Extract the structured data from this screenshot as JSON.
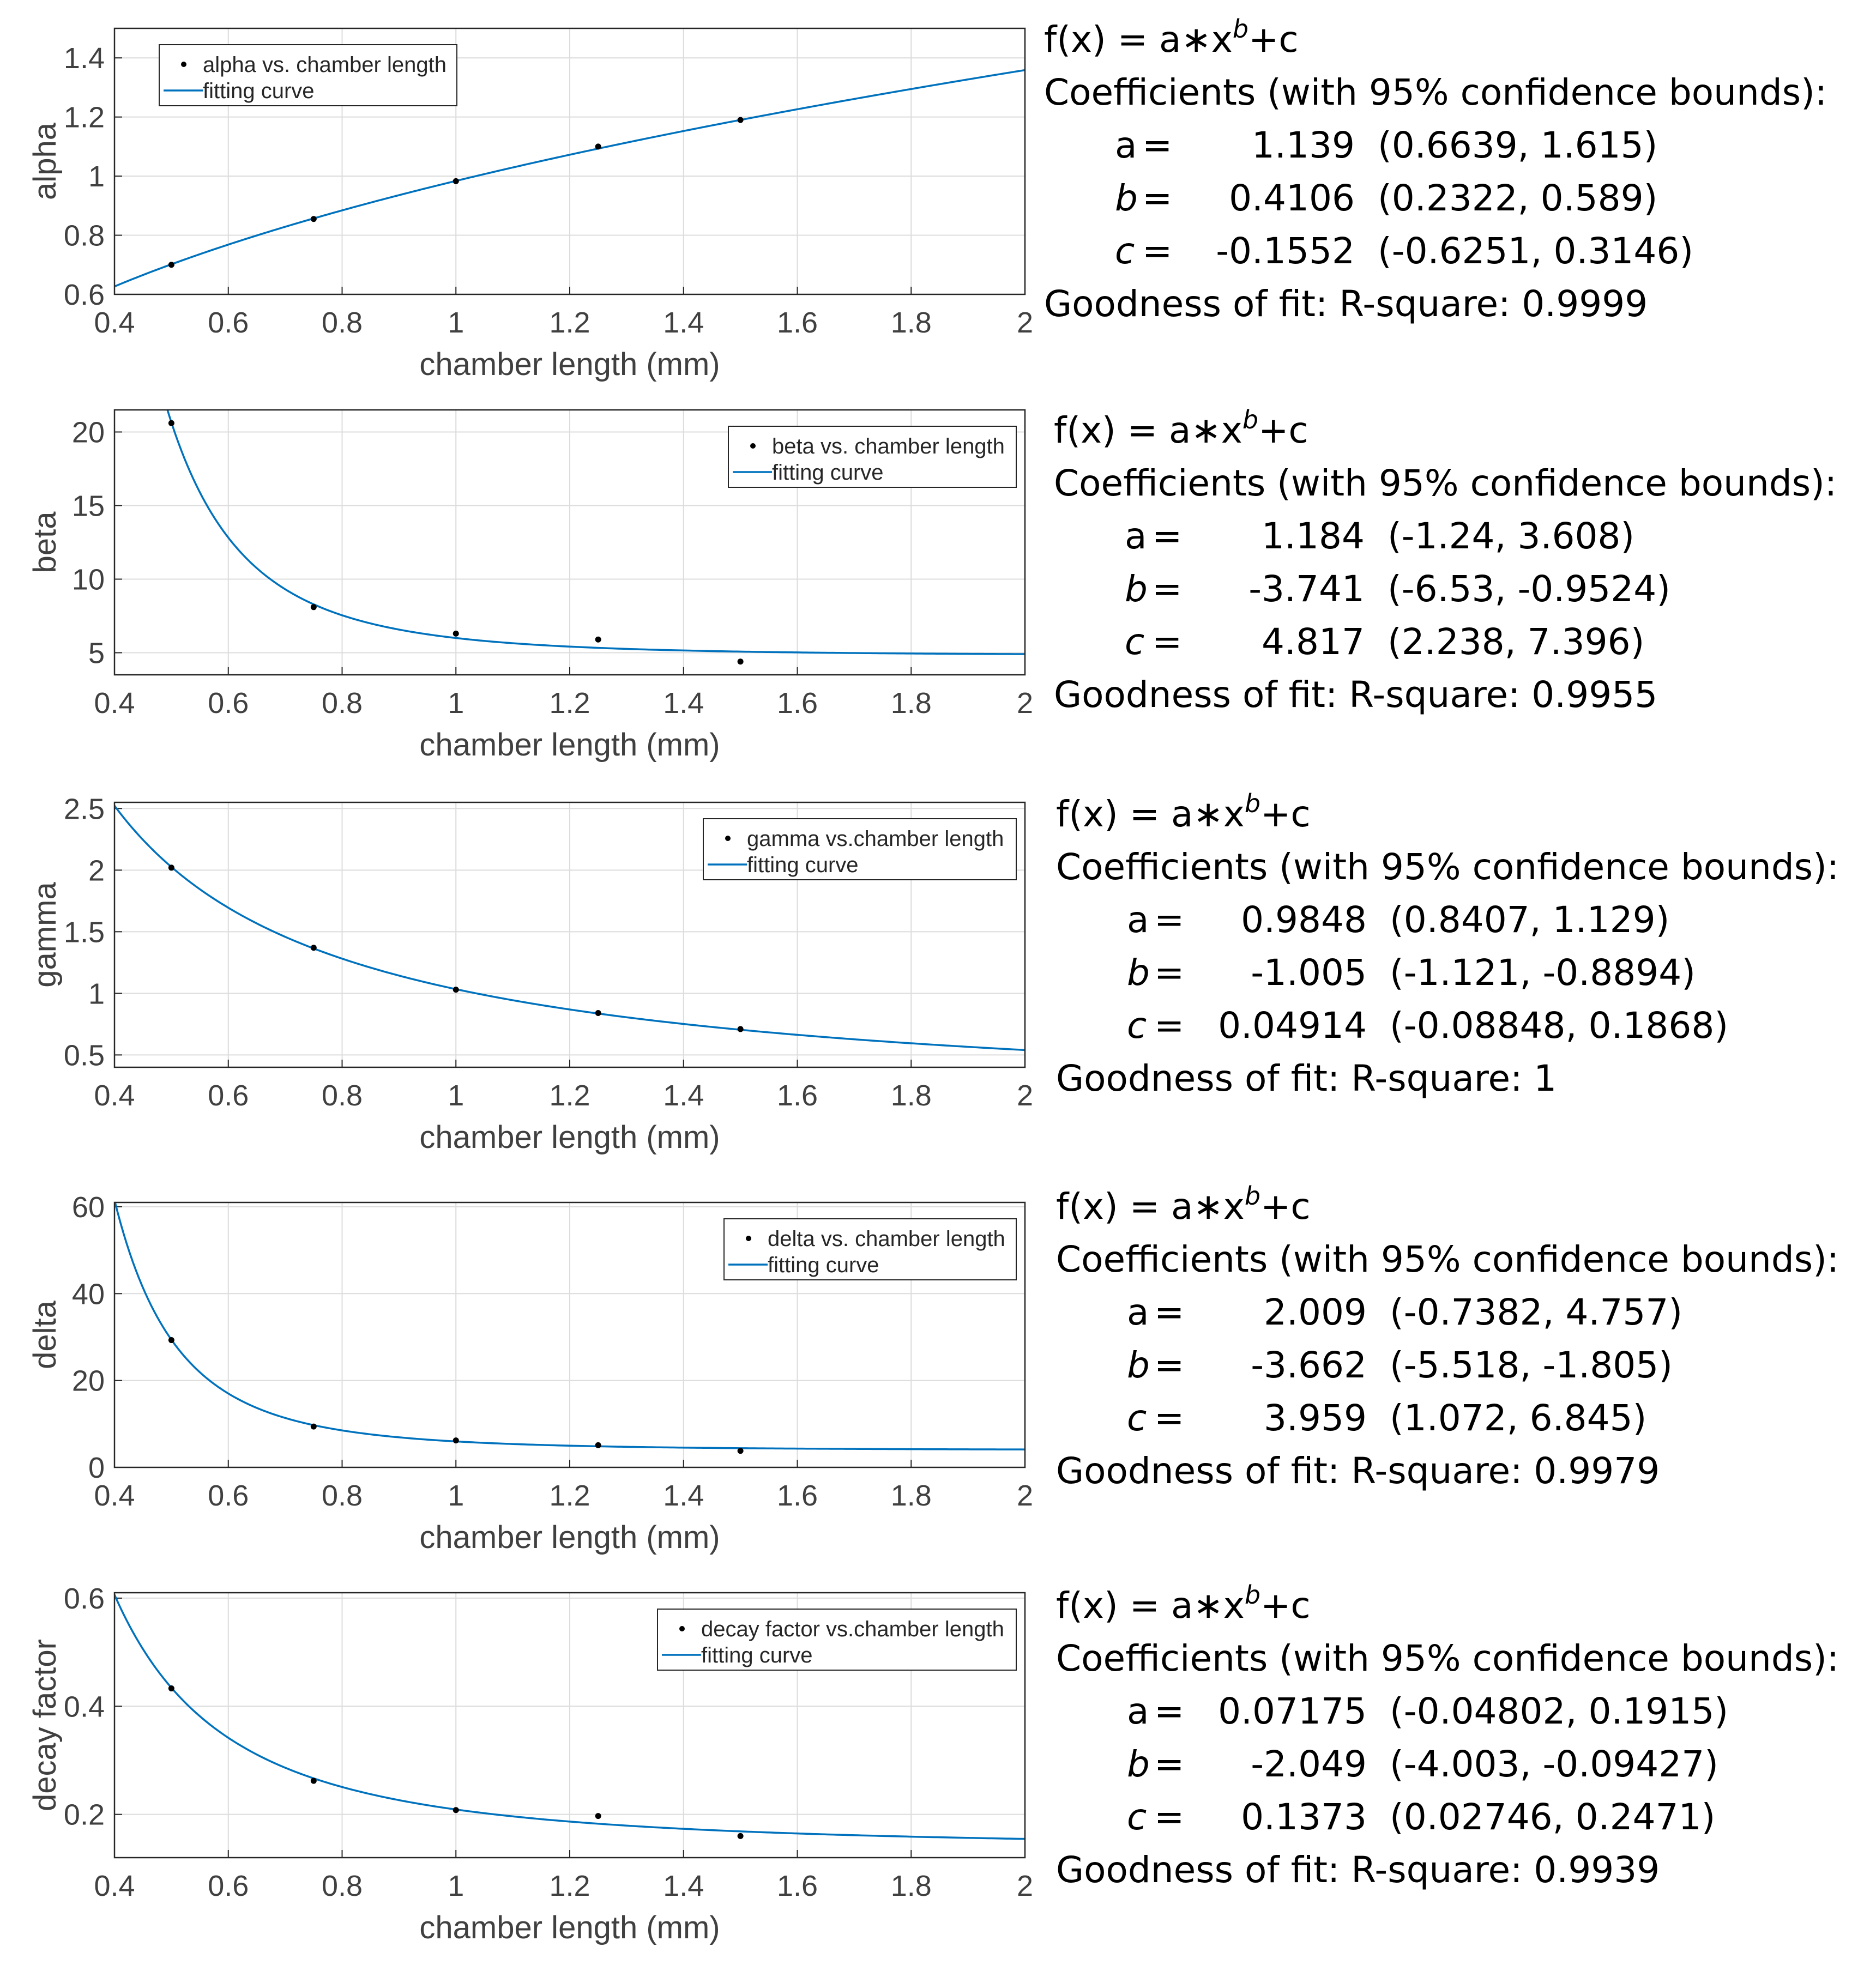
{
  "chart_data": [
    {
      "type": "scatter",
      "xlabel": "chamber length (mm)",
      "ylabel": "alpha",
      "xlim": [
        0.4,
        2
      ],
      "ylim": [
        0.6,
        1.5
      ],
      "xticks": [
        "0.4",
        "0.6",
        "0.8",
        "1",
        "1.2",
        "1.4",
        "1.6",
        "1.8",
        "2"
      ],
      "yticks": [
        "0.6",
        "0.8",
        "1",
        "1.2",
        "1.4"
      ],
      "grid": true,
      "legend_position": "top-left",
      "series": [
        {
          "name": "alpha vs. chamber length",
          "kind": "points",
          "x": [
            0.5,
            0.75,
            1,
            1.25,
            1.5
          ],
          "y": [
            0.7,
            0.855,
            0.983,
            1.1,
            1.19
          ]
        },
        {
          "name": "fitting curve",
          "kind": "fit",
          "a": 1.139,
          "b": 0.4106,
          "c": -0.1552
        }
      ],
      "fit": {
        "equation_prefix": "f(x) = a∗x",
        "equation_exp": "b",
        "equation_suffix": "+c",
        "coefficients_heading": "Coefficients (with 95% confidence bounds):",
        "coefficients": [
          {
            "name": "a",
            "eq": "=",
            "value": "1.139",
            "bounds": "(0.6639, 1.615)"
          },
          {
            "name": "b",
            "eq": "=",
            "value": "0.4106",
            "bounds": "(0.2322, 0.589)"
          },
          {
            "name": "c",
            "eq": "=",
            "value": "-0.1552",
            "bounds": "(-0.6251, 0.3146)"
          }
        ],
        "goodness": "Goodness of fit: R-square: 0.9999"
      }
    },
    {
      "type": "scatter",
      "xlabel": "chamber length (mm)",
      "ylabel": "beta",
      "xlim": [
        0.4,
        2
      ],
      "ylim": [
        3.5,
        21.5
      ],
      "xticks": [
        "0.4",
        "0.6",
        "0.8",
        "1",
        "1.2",
        "1.4",
        "1.6",
        "1.8",
        "2"
      ],
      "yticks": [
        "5",
        "10",
        "15",
        "20"
      ],
      "grid": true,
      "legend_position": "top-right",
      "series": [
        {
          "name": "beta vs. chamber length",
          "kind": "points",
          "x": [
            0.5,
            0.75,
            1,
            1.25,
            1.5
          ],
          "y": [
            20.6,
            8.1,
            6.3,
            5.9,
            4.4
          ]
        },
        {
          "name": "fitting curve",
          "kind": "fit",
          "a": 1.184,
          "b": -3.741,
          "c": 4.817
        }
      ],
      "fit": {
        "equation_prefix": "f(x) = a∗x",
        "equation_exp": "b",
        "equation_suffix": "+c",
        "coefficients_heading": "Coefficients (with 95% confidence bounds):",
        "coefficients": [
          {
            "name": "a",
            "eq": "=",
            "value": "1.184",
            "bounds": "(-1.24, 3.608)"
          },
          {
            "name": "b",
            "eq": "=",
            "value": "-3.741",
            "bounds": "(-6.53, -0.9524)"
          },
          {
            "name": "c",
            "eq": "=",
            "value": "4.817",
            "bounds": "(2.238, 7.396)"
          }
        ],
        "goodness": "Goodness of fit: R-square: 0.9955"
      }
    },
    {
      "type": "scatter",
      "xlabel": "chamber length (mm)",
      "ylabel": "gamma",
      "xlim": [
        0.4,
        2
      ],
      "ylim": [
        0.4,
        2.55
      ],
      "xticks": [
        "0.4",
        "0.6",
        "0.8",
        "1",
        "1.2",
        "1.4",
        "1.6",
        "1.8",
        "2"
      ],
      "yticks": [
        "0.5",
        "1",
        "1.5",
        "2",
        "2.5"
      ],
      "grid": true,
      "legend_position": "top-right",
      "series": [
        {
          "name": "gamma vs.chamber length",
          "kind": "points",
          "x": [
            0.5,
            0.75,
            1,
            1.25,
            1.5
          ],
          "y": [
            2.02,
            1.37,
            1.03,
            0.84,
            0.71
          ]
        },
        {
          "name": "fitting curve",
          "kind": "fit",
          "a": 0.9848,
          "b": -1.005,
          "c": 0.04914
        }
      ],
      "fit": {
        "equation_prefix": "f(x) = a∗x",
        "equation_exp": "b",
        "equation_suffix": "+c",
        "coefficients_heading": "Coefficients (with 95% confidence bounds):",
        "coefficients": [
          {
            "name": "a",
            "eq": "=",
            "value": "0.9848",
            "bounds": "(0.8407, 1.129)"
          },
          {
            "name": "b",
            "eq": "=",
            "value": "-1.005",
            "bounds": "(-1.121, -0.8894)"
          },
          {
            "name": "c",
            "eq": "=",
            "value": "0.04914",
            "bounds": "(-0.08848, 0.1868)"
          }
        ],
        "goodness": "Goodness of fit: R-square: 1"
      }
    },
    {
      "type": "scatter",
      "xlabel": "chamber length (mm)",
      "ylabel": "delta",
      "xlim": [
        0.4,
        2
      ],
      "ylim": [
        0,
        61
      ],
      "xticks": [
        "0.4",
        "0.6",
        "0.8",
        "1",
        "1.2",
        "1.4",
        "1.6",
        "1.8",
        "2"
      ],
      "yticks": [
        "0",
        "20",
        "40",
        "60"
      ],
      "grid": true,
      "legend_position": "top-right",
      "series": [
        {
          "name": "delta vs. chamber length",
          "kind": "points",
          "x": [
            0.5,
            0.75,
            1,
            1.25,
            1.5
          ],
          "y": [
            29.3,
            9.4,
            6.2,
            5.1,
            3.8
          ]
        },
        {
          "name": "fitting curve",
          "kind": "fit",
          "a": 2.009,
          "b": -3.662,
          "c": 3.959
        }
      ],
      "fit": {
        "equation_prefix": "f(x) = a∗x",
        "equation_exp": "b",
        "equation_suffix": "+c",
        "coefficients_heading": "Coefficients (with 95% confidence bounds):",
        "coefficients": [
          {
            "name": "a",
            "eq": "=",
            "value": "2.009",
            "bounds": "(-0.7382, 4.757)"
          },
          {
            "name": "b",
            "eq": "=",
            "value": "-3.662",
            "bounds": "(-5.518, -1.805)"
          },
          {
            "name": "c",
            "eq": "=",
            "value": "3.959",
            "bounds": "(1.072, 6.845)"
          }
        ],
        "goodness": "Goodness of fit: R-square: 0.9979"
      }
    },
    {
      "type": "scatter",
      "xlabel": "chamber length (mm)",
      "ylabel": "decay factor",
      "xlim": [
        0.4,
        2
      ],
      "ylim": [
        0.12,
        0.61
      ],
      "xticks": [
        "0.4",
        "0.6",
        "0.8",
        "1",
        "1.2",
        "1.4",
        "1.6",
        "1.8",
        "2"
      ],
      "yticks": [
        "0.2",
        "0.4",
        "0.6"
      ],
      "grid": true,
      "legend_position": "top-right",
      "series": [
        {
          "name": "decay factor vs.chamber length",
          "kind": "points",
          "x": [
            0.5,
            0.75,
            1,
            1.25,
            1.5
          ],
          "y": [
            0.433,
            0.262,
            0.208,
            0.197,
            0.16
          ]
        },
        {
          "name": "fitting curve",
          "kind": "fit",
          "a": 0.07175,
          "b": -2.049,
          "c": 0.1373
        }
      ],
      "fit": {
        "equation_prefix": "f(x) = a∗x",
        "equation_exp": "b",
        "equation_suffix": "+c",
        "coefficients_heading": "Coefficients (with 95% confidence bounds):",
        "coefficients": [
          {
            "name": "a",
            "eq": "=",
            "value": "0.07175",
            "bounds": "(-0.04802, 0.1915)"
          },
          {
            "name": "b",
            "eq": "=",
            "value": "-2.049",
            "bounds": "(-4.003, -0.09427)"
          },
          {
            "name": "c",
            "eq": "=",
            "value": "0.1373",
            "bounds": "(0.02746, 0.2471)"
          }
        ],
        "goodness": "Goodness of fit: R-square: 0.9939"
      }
    }
  ],
  "colors": {
    "curve": "#0072BD",
    "grid": "#DCDCDC",
    "axis": "#262626",
    "tick_text": "#404040",
    "point": "#000000"
  }
}
